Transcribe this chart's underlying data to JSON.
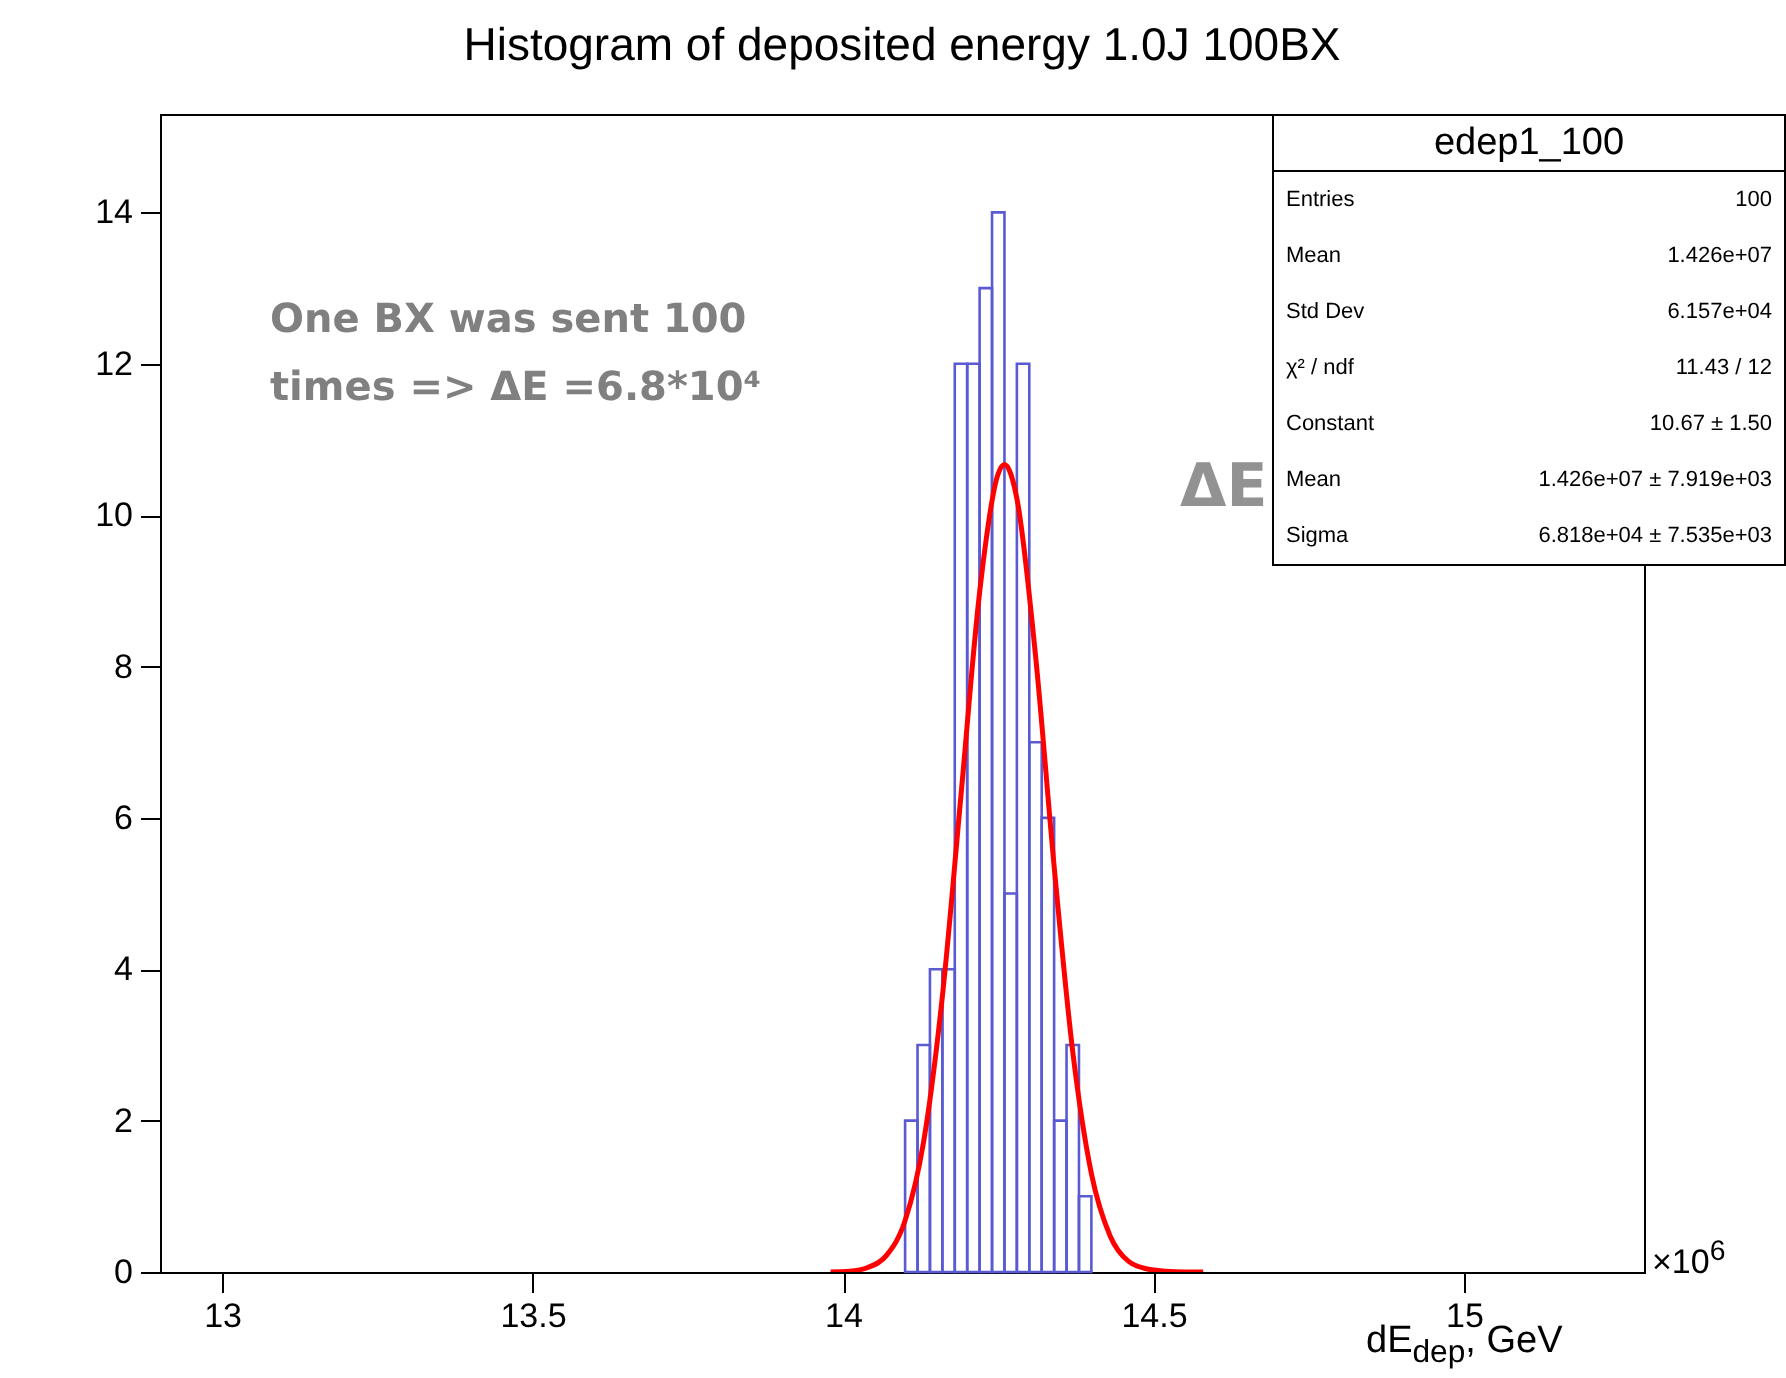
{
  "chart_data": {
    "type": "histogram",
    "title": "Histogram of deposited energy 1.0J 100BX",
    "xlabel": "dE$_{dep}$, GeV",
    "bins": [
      14.1,
      14.12,
      14.14,
      14.16,
      14.18,
      14.2,
      14.22,
      14.24,
      14.26,
      14.28,
      14.3,
      14.32,
      14.34,
      14.36,
      14.38,
      14.4
    ],
    "values": [
      2,
      3,
      4,
      4,
      12,
      12,
      13,
      14,
      5,
      12,
      7,
      6,
      2,
      3,
      1
    ],
    "color": "#5a5ad2",
    "series": [
      {
        "type": "line",
        "color": "#ff0000",
        "x": [
          13.98,
          14.01,
          14.04,
          14.07,
          14.1,
          14.13,
          14.16,
          14.19,
          14.22,
          14.25,
          14.26,
          14.28,
          14.31,
          14.34,
          14.37,
          14.4,
          14.43,
          14.46,
          14.49,
          14.52,
          14.55,
          14.58
        ],
        "values": [
          0,
          0.01,
          0.06,
          0.22,
          0.68,
          1.73,
          3.64,
          6.3,
          8.98,
          10.55,
          10.67,
          10.22,
          8.15,
          5.36,
          2.91,
          1.3,
          0.48,
          0.14,
          0.04,
          0.01,
          0,
          0
        ]
      }
    ],
    "xlim": [
      12.9,
      15.29
    ],
    "xticks": [
      13,
      13.5,
      14,
      14.5,
      15
    ],
    "ylim": [
      0,
      15.3
    ],
    "yticks": [
      0,
      2,
      4,
      6,
      8,
      10,
      12,
      14
    ],
    "annotations": [
      "One BX was sent 100 times => ΔE =6.8*10⁴",
      "ΔE",
      "×10$^{6}$",
      "edep1_100",
      "Entries",
      "100",
      "Mean",
      "1.426e+07",
      "Std Dev",
      "6.157e+04",
      "χ² / ndf",
      "11.43 / 12",
      "Constant",
      "10.67 ± 1.50",
      "Mean",
      "1.426e+07 ± 7.919e+03",
      "Sigma",
      "6.818e+04 ± 7.535e+03"
    ]
  }
}
